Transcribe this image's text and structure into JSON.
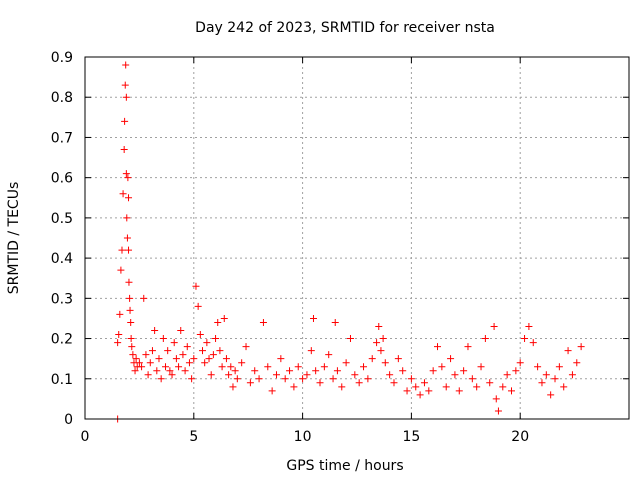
{
  "chart_data": {
    "type": "scatter",
    "title": "Day 242 of 2023, SRMTID for receiver nsta",
    "xlabel": "GPS time / hours",
    "ylabel": "SRMTID / TECUs",
    "xlim": [
      0,
      25
    ],
    "ylim": [
      0,
      0.9
    ],
    "xticks": [
      "0",
      "5",
      "10",
      "15",
      "20"
    ],
    "yticks": [
      "0",
      "0.1",
      "0.2",
      "0.3",
      "0.4",
      "0.5",
      "0.6",
      "0.7",
      "0.8",
      "0.9"
    ],
    "grid": true,
    "marker": "+",
    "color": "#ff0000",
    "series": [
      {
        "name": "SRMTID",
        "x": [
          1.5,
          1.5,
          1.55,
          1.6,
          1.65,
          1.7,
          1.75,
          1.8,
          1.82,
          1.85,
          1.87,
          1.9,
          1.9,
          1.92,
          1.95,
          1.97,
          2.0,
          2.0,
          2.02,
          2.05,
          2.07,
          2.1,
          2.12,
          2.15,
          2.2,
          2.25,
          2.3,
          2.35,
          2.4,
          2.5,
          2.6,
          2.7,
          2.8,
          2.9,
          3.0,
          3.1,
          3.2,
          3.3,
          3.4,
          3.5,
          3.6,
          3.7,
          3.8,
          3.9,
          4.0,
          4.1,
          4.2,
          4.3,
          4.4,
          4.5,
          4.6,
          4.7,
          4.8,
          4.9,
          5.0,
          5.1,
          5.2,
          5.3,
          5.4,
          5.5,
          5.6,
          5.7,
          5.8,
          5.9,
          6.0,
          6.1,
          6.2,
          6.3,
          6.4,
          6.5,
          6.6,
          6.7,
          6.8,
          6.9,
          7.0,
          7.2,
          7.4,
          7.6,
          7.8,
          8.0,
          8.2,
          8.4,
          8.6,
          8.8,
          9.0,
          9.2,
          9.4,
          9.6,
          9.8,
          10.0,
          10.2,
          10.4,
          10.5,
          10.6,
          10.8,
          11.0,
          11.2,
          11.4,
          11.5,
          11.6,
          11.8,
          12.0,
          12.2,
          12.4,
          12.6,
          12.8,
          13.0,
          13.2,
          13.4,
          13.5,
          13.6,
          13.7,
          13.8,
          14.0,
          14.2,
          14.4,
          14.6,
          14.8,
          15.0,
          15.2,
          15.4,
          15.6,
          15.8,
          16.0,
          16.2,
          16.4,
          16.6,
          16.8,
          17.0,
          17.2,
          17.4,
          17.6,
          17.8,
          18.0,
          18.2,
          18.4,
          18.6,
          18.8,
          18.9,
          19.0,
          19.2,
          19.4,
          19.6,
          19.8,
          20.0,
          20.2,
          20.4,
          20.6,
          20.8,
          21.0,
          21.2,
          21.4,
          21.6,
          21.8,
          22.0,
          22.2,
          22.4,
          22.6,
          22.8
        ],
        "y": [
          0.0,
          0.19,
          0.21,
          0.26,
          0.37,
          0.42,
          0.56,
          0.67,
          0.74,
          0.83,
          0.88,
          0.8,
          0.61,
          0.5,
          0.45,
          0.6,
          0.55,
          0.42,
          0.34,
          0.3,
          0.27,
          0.24,
          0.2,
          0.18,
          0.16,
          0.14,
          0.12,
          0.15,
          0.13,
          0.14,
          0.13,
          0.3,
          0.16,
          0.11,
          0.14,
          0.17,
          0.22,
          0.12,
          0.15,
          0.1,
          0.2,
          0.13,
          0.17,
          0.12,
          0.11,
          0.19,
          0.15,
          0.13,
          0.22,
          0.16,
          0.12,
          0.18,
          0.14,
          0.1,
          0.15,
          0.33,
          0.28,
          0.21,
          0.17,
          0.14,
          0.19,
          0.15,
          0.11,
          0.16,
          0.2,
          0.24,
          0.17,
          0.13,
          0.25,
          0.15,
          0.11,
          0.13,
          0.08,
          0.12,
          0.1,
          0.14,
          0.18,
          0.09,
          0.12,
          0.1,
          0.24,
          0.13,
          0.07,
          0.11,
          0.15,
          0.1,
          0.12,
          0.08,
          0.13,
          0.1,
          0.11,
          0.17,
          0.25,
          0.12,
          0.09,
          0.13,
          0.16,
          0.1,
          0.24,
          0.12,
          0.08,
          0.14,
          0.2,
          0.11,
          0.09,
          0.13,
          0.1,
          0.15,
          0.19,
          0.23,
          0.17,
          0.2,
          0.14,
          0.11,
          0.09,
          0.15,
          0.12,
          0.07,
          0.1,
          0.08,
          0.06,
          0.09,
          0.07,
          0.12,
          0.18,
          0.13,
          0.08,
          0.15,
          0.11,
          0.07,
          0.12,
          0.18,
          0.1,
          0.08,
          0.13,
          0.2,
          0.09,
          0.23,
          0.05,
          0.02,
          0.08,
          0.11,
          0.07,
          0.12,
          0.14,
          0.2,
          0.23,
          0.19,
          0.13,
          0.09,
          0.11,
          0.06,
          0.1,
          0.13,
          0.08,
          0.17,
          0.11,
          0.14,
          0.18
        ]
      }
    ]
  }
}
